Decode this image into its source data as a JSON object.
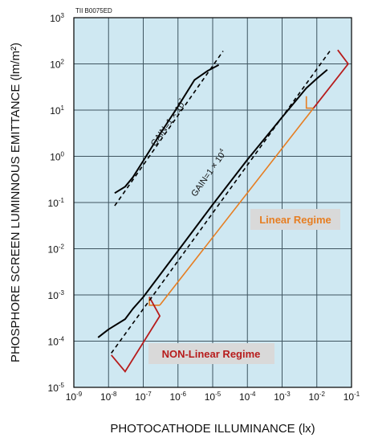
{
  "chart_data": {
    "type": "line",
    "figure_code": "TII B0075ED",
    "xlabel": "PHOTOCATHODE ILLUMINANCE (lx)",
    "ylabel": "PHOSPHORE SCREEN LUMINNOUS EMITTANCE (lm/m²)",
    "x_scale": "log",
    "y_scale": "log",
    "xlim": [
      1e-09,
      0.1
    ],
    "ylim": [
      1e-05,
      1000
    ],
    "grid": true,
    "background_color": "#cfe8f2",
    "x_ticks": [
      {
        "exp": "-9"
      },
      {
        "exp": "-8"
      },
      {
        "exp": "-7"
      },
      {
        "exp": "-6"
      },
      {
        "exp": "-5"
      },
      {
        "exp": "-4"
      },
      {
        "exp": "-3"
      },
      {
        "exp": "-2"
      },
      {
        "exp": "-1"
      }
    ],
    "y_ticks": [
      {
        "base": "10",
        "exp": "3"
      },
      {
        "base": "10",
        "exp": "2"
      },
      {
        "base": "10",
        "exp": "1"
      },
      {
        "base": "10",
        "exp": "0"
      },
      {
        "base": "10",
        "exp": "-1"
      },
      {
        "base": "10",
        "exp": "-2"
      },
      {
        "base": "10",
        "exp": "-3"
      },
      {
        "base": "10",
        "exp": "-4"
      },
      {
        "base": "10",
        "exp": "-5"
      }
    ],
    "series": [
      {
        "label_text": "GAIN=1 × 10",
        "label_exp": "7",
        "color": "#000000",
        "curve": [
          [
            1.5e-08,
            0.16
          ],
          [
            3e-08,
            0.22
          ],
          [
            5e-08,
            0.35
          ],
          [
            1e-07,
            0.8
          ],
          [
            3e-07,
            3
          ],
          [
            1e-06,
            12
          ],
          [
            3e-06,
            45
          ],
          [
            7e-06,
            70
          ],
          [
            1.5e-05,
            95
          ]
        ],
        "dashed": [
          [
            1.5e-08,
            0.085
          ],
          [
            2e-05,
            190
          ]
        ]
      },
      {
        "label_text": "GAIN=1 × 10",
        "label_exp": "4",
        "color": "#000000",
        "curve": [
          [
            5e-09,
            0.00012
          ],
          [
            1e-08,
            0.00018
          ],
          [
            3e-08,
            0.0003
          ],
          [
            5e-08,
            0.0005
          ],
          [
            1e-07,
            0.0009
          ],
          [
            1e-06,
            0.009
          ],
          [
            1e-05,
            0.09
          ],
          [
            0.0001,
            0.85
          ],
          [
            0.001,
            7
          ],
          [
            0.005,
            30
          ],
          [
            0.01,
            48
          ],
          [
            0.02,
            75
          ]
        ],
        "dashed": [
          [
            1.2e-08,
            5.5e-05
          ],
          [
            0.025,
            200
          ]
        ]
      }
    ],
    "regimes": [
      {
        "label": "Linear Regime",
        "color": "#e67e22",
        "box_color": "#d9d9d9",
        "linear_line": [
          [
            3e-07,
            0.0006
          ],
          [
            0.008,
            11
          ]
        ],
        "brackets": [
          [
            [
              1.5e-07,
              0.0009
            ],
            [
              1.5e-07,
              0.0006
            ],
            [
              3e-07,
              0.0006
            ]
          ],
          [
            [
              0.005,
              20
            ],
            [
              0.005,
              11
            ],
            [
              0.008,
              11
            ]
          ]
        ]
      },
      {
        "label": "NON-Linear Regime",
        "color": "#b71c1c",
        "box_color": "#d9d9d9",
        "brackets": [
          [
            [
              1.2e-08,
              5e-05
            ],
            [
              3e-08,
              2.2e-05
            ],
            [
              3e-07,
              0.00035
            ],
            [
              1.5e-07,
              0.0009
            ]
          ],
          [
            [
              0.008,
              11
            ],
            [
              0.08,
              100
            ],
            [
              0.04,
              200
            ]
          ]
        ]
      }
    ]
  }
}
